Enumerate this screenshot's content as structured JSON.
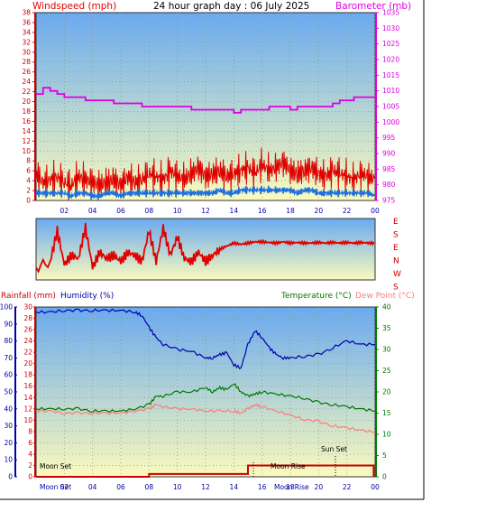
{
  "colors": {
    "wind": "#e00000",
    "gust": "#e00000",
    "wind_avg": "#1e6fe0",
    "baro": "#e000e0",
    "dir": "#e00000",
    "rain": "#cc0000",
    "humidity": "#0000aa",
    "temp": "#007700",
    "dew": "#ff7b7b",
    "bg_top": "#6aaaf0",
    "bg_bottom": "#fafabc"
  },
  "header": {
    "wind_label": "Windspeed (mph)",
    "title": "24 hour graph day : 06 July 2025",
    "baro_label": "Barometer (mb)"
  },
  "lower_header": {
    "rain_label": "Rainfall (mm)",
    "humidity_label": "Humidity (%)",
    "temp_label": "Temperature (°C)",
    "dew_label": "Dew Point (°C)"
  },
  "direction_labels": [
    "E",
    "S",
    "E",
    "N",
    "W",
    "S"
  ],
  "annotations": {
    "moon_set": "Moon Set",
    "moon_rise": "Moon Rise",
    "sun_set": "Sun Set",
    "bottom_left": "Moon Set",
    "bottom_mid": "Moon Rise"
  },
  "chart_data": [
    {
      "type": "line",
      "title": "24 hour graph day : 06 July 2025",
      "x_ticks": [
        "02",
        "04",
        "06",
        "08",
        "10",
        "12",
        "14",
        "16",
        "18",
        "20",
        "22",
        "00"
      ],
      "xlim": [
        0,
        24
      ],
      "y_left": {
        "label": "Windspeed (mph)",
        "ticks": [
          0,
          2,
          4,
          6,
          8,
          10,
          12,
          14,
          16,
          18,
          20,
          22,
          24,
          26,
          28,
          30,
          32,
          34,
          36,
          38
        ],
        "ylim": [
          0,
          38
        ]
      },
      "y_right": {
        "label": "Barometer (mb)",
        "ticks": [
          975,
          980,
          985,
          990,
          995,
          1000,
          1005,
          1010,
          1015,
          1020,
          1025,
          1030,
          1035
        ],
        "ylim": [
          975,
          1035
        ]
      },
      "series": [
        {
          "name": "Barometer (mb)",
          "axis": "right",
          "x": [
            0,
            0.5,
            1,
            1.5,
            2,
            2.5,
            3,
            3.5,
            4,
            4.5,
            5,
            5.5,
            6,
            6.5,
            7,
            7.5,
            8,
            8.5,
            9,
            9.5,
            10,
            10.5,
            11,
            11.5,
            12,
            12.5,
            13,
            13.5,
            14,
            14.5,
            15,
            15.5,
            16,
            16.5,
            17,
            17.5,
            18,
            18.5,
            19,
            19.5,
            20,
            20.5,
            21,
            21.5,
            22,
            22.5,
            23,
            23.5,
            24
          ],
          "values": [
            1009,
            1011,
            1010,
            1009,
            1008,
            1008,
            1008,
            1007,
            1007,
            1007,
            1007,
            1006,
            1006,
            1006,
            1006,
            1005,
            1005,
            1005,
            1005,
            1005,
            1005,
            1005,
            1004,
            1004,
            1004,
            1004,
            1004,
            1004,
            1003,
            1004,
            1004,
            1004,
            1004,
            1005,
            1005,
            1005,
            1004,
            1005,
            1005,
            1005,
            1005,
            1005,
            1006,
            1007,
            1007,
            1008,
            1008,
            1008,
            1008
          ]
        },
        {
          "name": "Windspeed (mph) gust",
          "axis": "left",
          "x": [
            0,
            0.5,
            1,
            1.5,
            2,
            2.5,
            3,
            3.5,
            4,
            4.5,
            5,
            5.5,
            6,
            6.5,
            7,
            7.5,
            8,
            8.5,
            9,
            9.5,
            10,
            10.5,
            11,
            11.5,
            12,
            12.5,
            13,
            13.5,
            14,
            14.5,
            15,
            15.5,
            16,
            16.5,
            17,
            17.5,
            18,
            18.5,
            19,
            19.5,
            20,
            20.5,
            21,
            21.5,
            22,
            22.5,
            23,
            23.5,
            24
          ],
          "values": [
            7,
            4,
            5,
            6,
            4,
            3,
            6,
            5,
            4,
            3,
            4,
            5,
            3,
            6,
            4,
            5,
            7,
            6,
            5,
            8,
            6,
            5,
            7,
            9,
            6,
            7,
            8,
            6,
            7,
            8,
            9,
            7,
            10,
            8,
            9,
            11,
            8,
            7,
            8,
            9,
            7,
            6,
            8,
            7,
            6,
            5,
            7,
            6,
            5
          ]
        },
        {
          "name": "Windspeed (mph) average",
          "axis": "left",
          "x": [
            0,
            0.5,
            1,
            1.5,
            2,
            2.5,
            3,
            3.5,
            4,
            4.5,
            5,
            5.5,
            6,
            6.5,
            7,
            7.5,
            8,
            8.5,
            9,
            9.5,
            10,
            10.5,
            11,
            11.5,
            12,
            12.5,
            13,
            13.5,
            14,
            14.5,
            15,
            15.5,
            16,
            16.5,
            17,
            17.5,
            18,
            18.5,
            19,
            19.5,
            20,
            20.5,
            21,
            21.5,
            22,
            22.5,
            23,
            23.5,
            24
          ],
          "values": [
            2,
            2,
            2,
            2,
            2,
            1,
            2,
            2,
            1,
            1,
            2,
            2,
            1,
            2,
            2,
            2,
            2,
            2,
            2,
            2,
            2,
            2,
            2,
            2,
            2,
            2,
            3,
            2,
            2,
            3,
            3,
            3,
            3,
            3,
            3,
            3,
            3,
            2,
            3,
            3,
            2,
            2,
            2,
            2,
            2,
            2,
            2,
            2,
            1
          ]
        }
      ]
    },
    {
      "type": "line",
      "x_ticks": [],
      "y_labels": [
        "E",
        "S",
        "E",
        "N",
        "W",
        "S"
      ],
      "series": [
        {
          "name": "Wind direction",
          "x": [
            0,
            1,
            1.5,
            2,
            2.5,
            3,
            3.5,
            4,
            4.5,
            5,
            5.5,
            6,
            6.5,
            7,
            7.5,
            8,
            8.5,
            9,
            9.5,
            10,
            10.5,
            11,
            11.5,
            12,
            12.5,
            13,
            13.5,
            14,
            14.5,
            15,
            15.5,
            16,
            16.5,
            17,
            17.5,
            18,
            18.5,
            19,
            19.5,
            20,
            20.5,
            21,
            21.5,
            22,
            22.5,
            23,
            23.5,
            24
          ],
          "values": [
            20,
            30,
            80,
            25,
            40,
            35,
            85,
            20,
            45,
            35,
            40,
            30,
            45,
            40,
            30,
            80,
            30,
            85,
            40,
            70,
            35,
            30,
            45,
            30,
            40,
            50,
            55,
            60,
            58,
            60,
            62,
            62,
            61,
            60,
            62,
            60,
            61,
            60,
            60,
            61,
            60,
            61,
            60,
            61,
            60,
            61,
            60,
            60
          ]
        }
      ]
    },
    {
      "type": "line",
      "x_ticks": [
        "02",
        "04",
        "06",
        "08",
        "10",
        "12",
        "14",
        "16",
        "18",
        "20",
        "22",
        "00"
      ],
      "xlim": [
        0,
        24
      ],
      "y_humidity": {
        "label": "Humidity (%)",
        "ticks": [
          0,
          10,
          20,
          30,
          40,
          50,
          60,
          70,
          80,
          90,
          100
        ],
        "ylim": [
          0,
          100
        ]
      },
      "y_rain": {
        "label": "Rainfall (mm)",
        "ticks": [
          0,
          2,
          4,
          6,
          8,
          10,
          12,
          14,
          16,
          18,
          20,
          22,
          24,
          26,
          28,
          30
        ],
        "ylim": [
          0,
          30
        ]
      },
      "y_temp": {
        "label": "Temperature (°C)",
        "ticks": [
          0,
          5,
          10,
          15,
          20,
          25,
          30,
          35,
          40
        ],
        "ylim": [
          0,
          40
        ]
      },
      "series": [
        {
          "name": "Humidity (%)",
          "axis": "humidity",
          "x": [
            0,
            1,
            2,
            3,
            4,
            5,
            6,
            7,
            7.5,
            8,
            8.5,
            9,
            10,
            11,
            12,
            12.5,
            13,
            13.5,
            14,
            14.5,
            15,
            15.5,
            16,
            16.5,
            17,
            17.5,
            18,
            19,
            20,
            21,
            22,
            23,
            24
          ],
          "values": [
            97,
            97,
            98,
            98,
            98,
            98,
            98,
            97,
            95,
            88,
            82,
            78,
            75,
            74,
            70,
            70,
            72,
            73,
            66,
            64,
            78,
            86,
            82,
            76,
            72,
            70,
            70,
            71,
            72,
            76,
            80,
            78,
            78
          ]
        },
        {
          "name": "Temperature (°C)",
          "axis": "temp",
          "x": [
            0,
            1,
            2,
            3,
            4,
            5,
            6,
            7,
            8,
            8.5,
            9,
            10,
            11,
            12,
            12.5,
            13,
            13.5,
            14,
            14.5,
            15,
            15.5,
            16,
            17,
            18,
            19,
            20,
            21,
            22,
            23,
            24
          ],
          "values": [
            16,
            16,
            16,
            16,
            15.5,
            15.5,
            15.5,
            16,
            17,
            19,
            19,
            20,
            20,
            21,
            20,
            21,
            20.5,
            22,
            20,
            19,
            19.5,
            20,
            19.5,
            19,
            18.5,
            17.5,
            17,
            16.5,
            16,
            15.5
          ]
        },
        {
          "name": "Dew Point (°C)",
          "axis": "temp",
          "x": [
            0,
            1,
            2,
            3,
            4,
            5,
            6,
            7,
            8,
            8.5,
            9,
            10,
            11,
            12,
            13,
            14,
            14.5,
            15,
            15.5,
            16,
            17,
            18,
            19,
            20,
            21,
            22,
            23,
            24
          ],
          "values": [
            15.5,
            15.5,
            15,
            15,
            15,
            15,
            15,
            15.5,
            16,
            17,
            16.5,
            16,
            16,
            15.5,
            15.5,
            15.5,
            15,
            16,
            17,
            16.5,
            15.5,
            14.5,
            13.5,
            13,
            12,
            11.5,
            11,
            10.5
          ]
        },
        {
          "name": "Rainfall (mm)",
          "axis": "rain",
          "x": [
            0,
            2,
            4,
            6,
            7.9,
            8,
            14.9,
            15,
            20,
            23.8,
            23.9
          ],
          "values": [
            0,
            0,
            0,
            0,
            0,
            0.5,
            0.5,
            2,
            2,
            2,
            0
          ]
        }
      ]
    }
  ]
}
